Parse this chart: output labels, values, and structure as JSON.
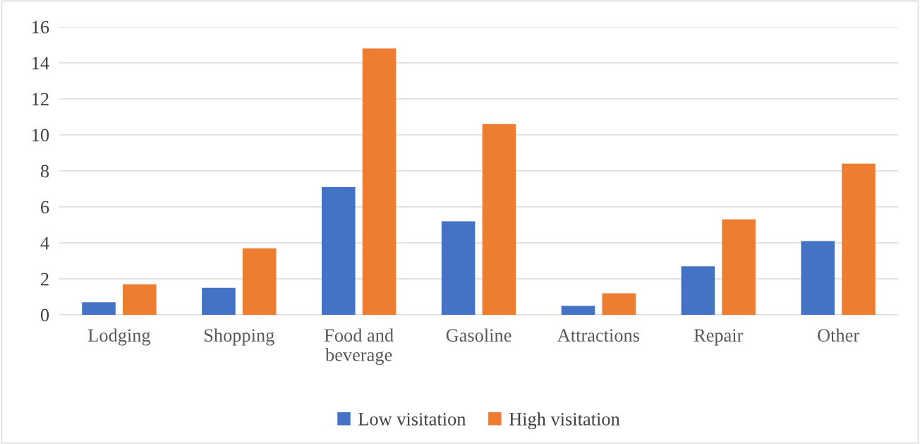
{
  "chart_data": {
    "type": "bar",
    "categories": [
      "Lodging",
      "Shopping",
      "Food and\nbeverage",
      "Gasoline",
      "Attractions",
      "Repair",
      "Other"
    ],
    "series": [
      {
        "name": "Low visitation",
        "color": "#4472c4",
        "values": [
          0.7,
          1.5,
          7.1,
          5.2,
          0.5,
          2.7,
          4.1
        ]
      },
      {
        "name": "High visitation",
        "color": "#ed7d31",
        "values": [
          1.7,
          3.7,
          14.8,
          10.6,
          1.2,
          5.3,
          8.4
        ]
      }
    ],
    "ylim": [
      0,
      16
    ],
    "yticks": [
      0,
      2,
      4,
      6,
      8,
      10,
      12,
      14,
      16
    ],
    "grid": "y",
    "legend": "bottom"
  }
}
